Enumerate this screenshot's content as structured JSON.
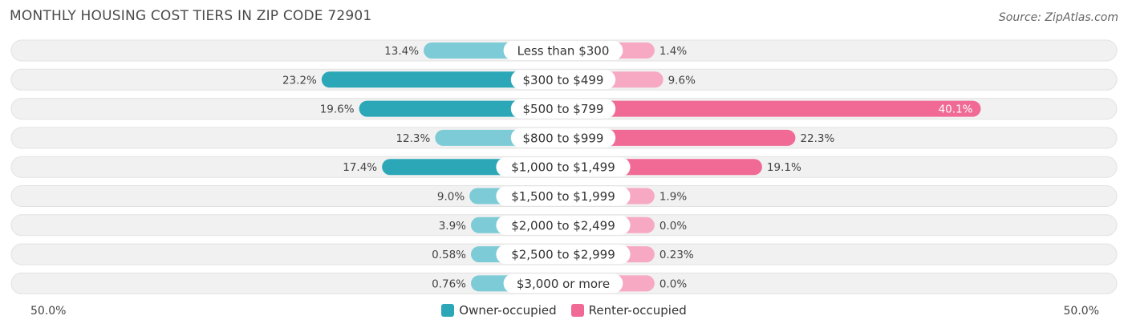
{
  "title": "MONTHLY HOUSING COST TIERS IN ZIP CODE 72901",
  "source": "Source: ZipAtlas.com",
  "colors": {
    "owner": "#2ba7b8",
    "owner_light": "#7ccbd6",
    "renter": "#f06a95",
    "renter_light": "#f7a8c3",
    "row_bg": "#f1f1f1"
  },
  "chart_data": {
    "type": "bar",
    "orientation": "diverging-horizontal",
    "categories": [
      "Less than $300",
      "$300 to $499",
      "$500 to $799",
      "$800 to $999",
      "$1,000 to $1,499",
      "$1,500 to $1,999",
      "$2,000 to $2,499",
      "$2,500 to $2,999",
      "$3,000 or more"
    ],
    "series": [
      {
        "name": "Owner-occupied",
        "values": [
          13.4,
          23.2,
          19.6,
          12.3,
          17.4,
          9.0,
          3.9,
          0.58,
          0.76
        ],
        "labels": [
          "13.4%",
          "23.2%",
          "19.6%",
          "12.3%",
          "17.4%",
          "9.0%",
          "3.9%",
          "0.58%",
          "0.76%"
        ]
      },
      {
        "name": "Renter-occupied",
        "values": [
          1.4,
          9.6,
          40.1,
          22.3,
          19.1,
          1.9,
          0.0,
          0.23,
          0.0
        ],
        "labels": [
          "1.4%",
          "9.6%",
          "40.1%",
          "22.3%",
          "19.1%",
          "1.9%",
          "0.0%",
          "0.23%",
          "0.0%"
        ]
      }
    ],
    "xlim": [
      -50,
      50
    ],
    "axis_left_label": "50.0%",
    "axis_right_label": "50.0%",
    "legend_position": "bottom-center"
  }
}
